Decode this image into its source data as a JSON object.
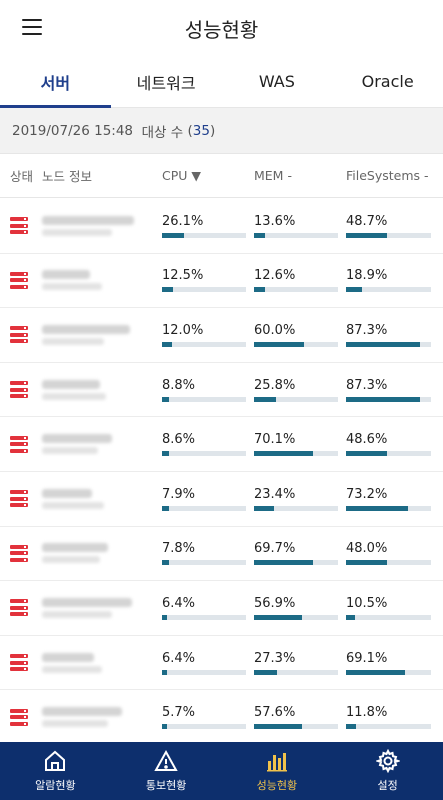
{
  "header": {
    "title": "성능현황"
  },
  "tabs": [
    {
      "label": "서버",
      "active": true
    },
    {
      "label": "네트워크",
      "active": false
    },
    {
      "label": "WAS",
      "active": false
    },
    {
      "label": "Oracle",
      "active": false
    }
  ],
  "info": {
    "datetime": "2019/07/26 15:48",
    "count_label": "대상 수",
    "count_open": "(",
    "count": "35",
    "count_close": ")"
  },
  "columns": {
    "status": "상태",
    "node": "노드 정보",
    "cpu": "CPU ▼",
    "mem": "MEM -",
    "fs": "FileSystems -"
  },
  "rows": [
    {
      "cpu": "26.1%",
      "cpu_v": 26.1,
      "mem": "13.6%",
      "mem_v": 13.6,
      "fs": "48.7%",
      "fs_v": 48.7
    },
    {
      "cpu": "12.5%",
      "cpu_v": 12.5,
      "mem": "12.6%",
      "mem_v": 12.6,
      "fs": "18.9%",
      "fs_v": 18.9
    },
    {
      "cpu": "12.0%",
      "cpu_v": 12.0,
      "mem": "60.0%",
      "mem_v": 60.0,
      "fs": "87.3%",
      "fs_v": 87.3
    },
    {
      "cpu": "8.8%",
      "cpu_v": 8.8,
      "mem": "25.8%",
      "mem_v": 25.8,
      "fs": "87.3%",
      "fs_v": 87.3
    },
    {
      "cpu": "8.6%",
      "cpu_v": 8.6,
      "mem": "70.1%",
      "mem_v": 70.1,
      "fs": "48.6%",
      "fs_v": 48.6
    },
    {
      "cpu": "7.9%",
      "cpu_v": 7.9,
      "mem": "23.4%",
      "mem_v": 23.4,
      "fs": "73.2%",
      "fs_v": 73.2
    },
    {
      "cpu": "7.8%",
      "cpu_v": 7.8,
      "mem": "69.7%",
      "mem_v": 69.7,
      "fs": "48.0%",
      "fs_v": 48.0
    },
    {
      "cpu": "6.4%",
      "cpu_v": 6.4,
      "mem": "56.9%",
      "mem_v": 56.9,
      "fs": "10.5%",
      "fs_v": 10.5
    },
    {
      "cpu": "6.4%",
      "cpu_v": 6.4,
      "mem": "27.3%",
      "mem_v": 27.3,
      "fs": "69.1%",
      "fs_v": 69.1
    },
    {
      "cpu": "5.7%",
      "cpu_v": 5.7,
      "mem": "57.6%",
      "mem_v": 57.6,
      "fs": "11.8%",
      "fs_v": 11.8
    }
  ],
  "nav": [
    {
      "label": "알람현황",
      "icon": "home-icon",
      "active": false
    },
    {
      "label": "통보현황",
      "icon": "warning-icon",
      "active": false
    },
    {
      "label": "성능현황",
      "icon": "bar-chart-icon",
      "active": true
    },
    {
      "label": "설정",
      "icon": "gear-icon",
      "active": false
    }
  ],
  "colors": {
    "accent": "#1f3f8c",
    "bar_fill": "#1d6b86",
    "bar_bg": "#dfe5ea",
    "server_icon": "#e2323c",
    "nav_bg": "#0d2f6d",
    "nav_active": "#f0c24b"
  }
}
